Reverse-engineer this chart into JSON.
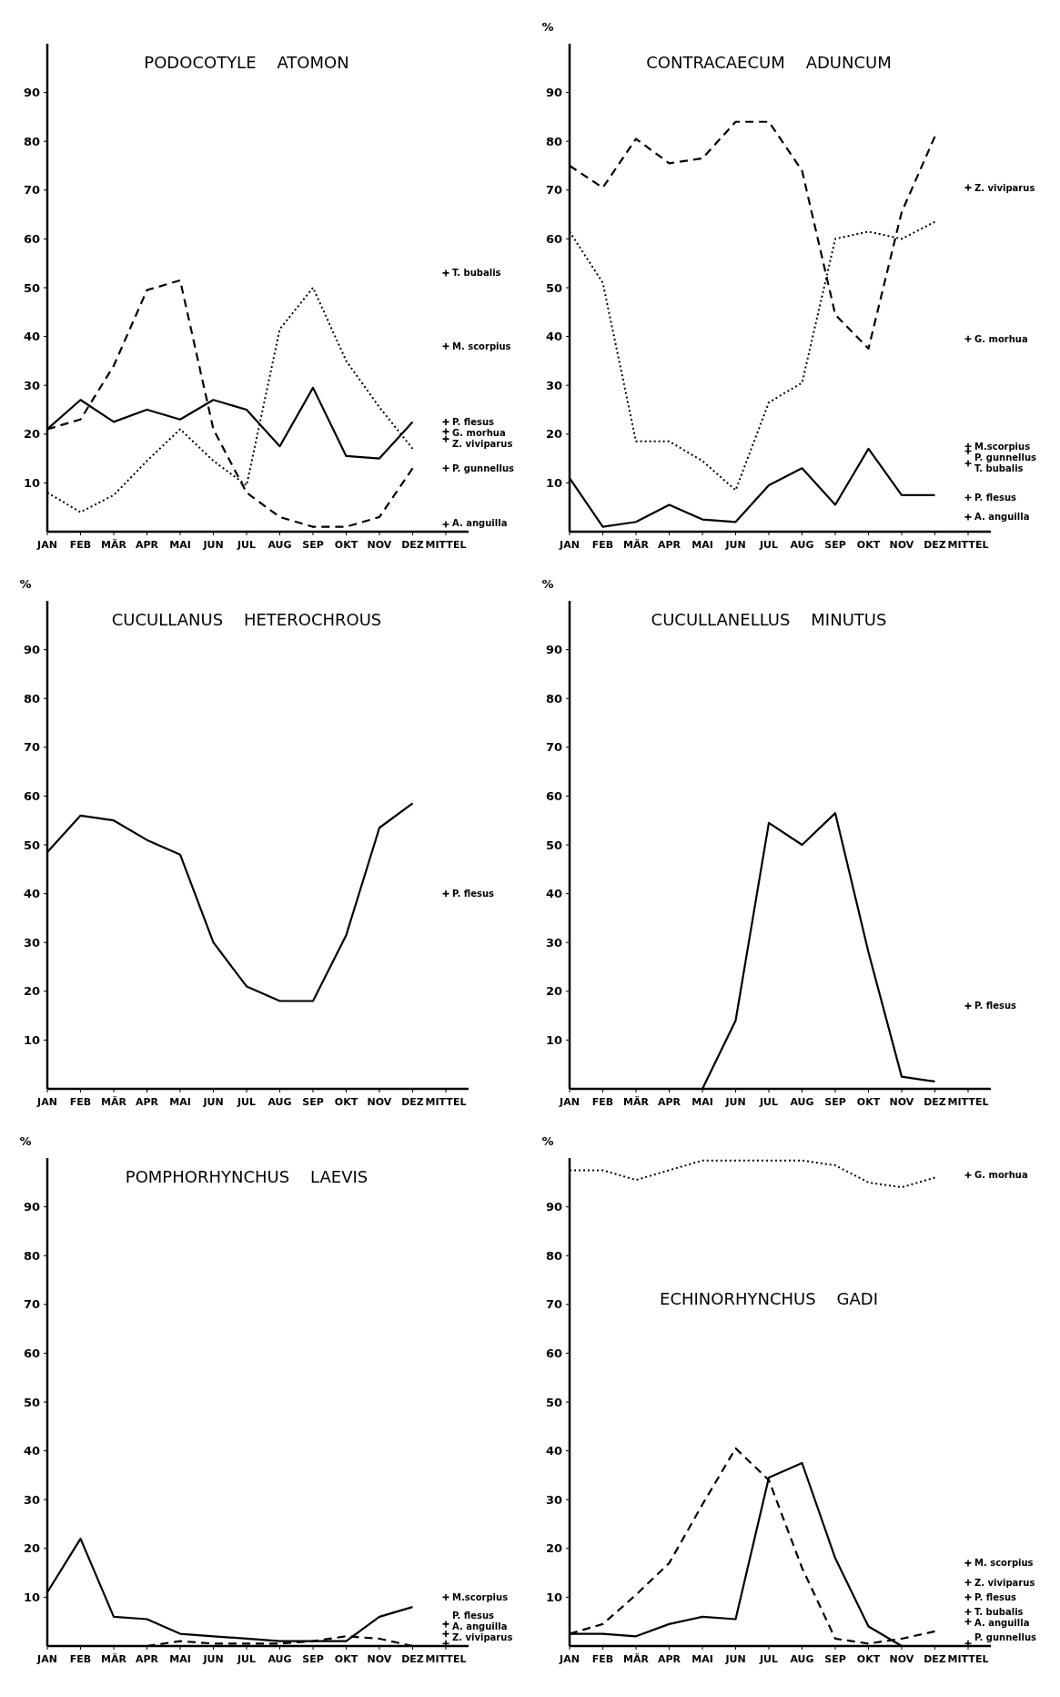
{
  "chart_data": [
    {
      "type": "line",
      "title": "PODOCOTYLE    ATOMON",
      "categories": [
        "JAN",
        "FEB",
        "MÄR",
        "APR",
        "MAI",
        "JUN",
        "JUL",
        "AUG",
        "SEP",
        "OKT",
        "NOV",
        "DEZ",
        "MITTEL"
      ],
      "ylim": [
        0,
        100
      ],
      "yticks": [
        10,
        20,
        30,
        40,
        50,
        60,
        70,
        80,
        90
      ],
      "marker": "none",
      "series": [
        {
          "color": "#000000",
          "line_style": "solid",
          "values": [
            21,
            27,
            22.5,
            25,
            23,
            27,
            25,
            17.5,
            29.5,
            15.5,
            15,
            22.5,
            null
          ]
        },
        {
          "color": "#000000",
          "line_style": "dashed",
          "values": [
            21,
            23,
            34,
            49.5,
            51.5,
            21,
            8,
            3,
            1,
            1,
            3,
            13,
            null
          ]
        },
        {
          "color": "#000000",
          "line_style": "dotted",
          "values": [
            8,
            4,
            7.5,
            14.5,
            21,
            14.5,
            9.5,
            41.5,
            50,
            35,
            25.5,
            17,
            null
          ]
        },
        {
          "type": "scatter",
          "marker": "cross",
          "name": "T. bubalis",
          "color": "#000000",
          "x": [
            "MITTEL"
          ],
          "values": [
            53
          ]
        },
        {
          "type": "scatter",
          "marker": "cross",
          "name": "M. scorpius",
          "color": "#000000",
          "x": [
            "MITTEL"
          ],
          "values": [
            38
          ]
        },
        {
          "type": "scatter",
          "marker": "cross",
          "name": "P. flesus",
          "color": "#000000",
          "x": [
            "MITTEL"
          ],
          "values": [
            22.5
          ]
        },
        {
          "type": "scatter",
          "marker": "cross",
          "name": "G. morhua",
          "color": "#000000",
          "x": [
            "MITTEL"
          ],
          "values": [
            20.5
          ]
        },
        {
          "type": "scatter",
          "marker": "cross",
          "name": "Z. viviparus",
          "color": "#000000",
          "x": [
            "MITTEL"
          ],
          "values": [
            19
          ]
        },
        {
          "type": "scatter",
          "marker": "cross",
          "name": "P. gunnellus",
          "color": "#000000",
          "x": [
            "MITTEL"
          ],
          "values": [
            13
          ]
        },
        {
          "type": "scatter",
          "marker": "cross",
          "name": "A. anguilla",
          "color": "#000000",
          "x": [
            "MITTEL"
          ],
          "values": [
            1.5
          ]
        }
      ]
    },
    {
      "type": "line",
      "title": "CONTRACAECUM    ADUNCUM",
      "ylabel": "%",
      "categories": [
        "JAN",
        "FEB",
        "MÄR",
        "APR",
        "MAI",
        "JUN",
        "JUL",
        "AUG",
        "SEP",
        "OKT",
        "NOV",
        "DEZ",
        "MITTEL"
      ],
      "ylim": [
        0,
        100
      ],
      "yticks": [
        10,
        20,
        30,
        40,
        50,
        60,
        70,
        80,
        90
      ],
      "marker": "none",
      "series": [
        {
          "color": "#000000",
          "line_style": "dashed",
          "values": [
            75,
            70.5,
            80.5,
            75.5,
            76.5,
            84,
            84,
            74,
            44.5,
            37.5,
            65.5,
            81,
            null
          ]
        },
        {
          "color": "#000000",
          "line_style": "dotted",
          "values": [
            61.5,
            51,
            18.5,
            18.5,
            14.5,
            8.5,
            26.5,
            30.5,
            60,
            61.5,
            60,
            63.5,
            null
          ]
        },
        {
          "color": "#000000",
          "line_style": "solid",
          "values": [
            11,
            1,
            2,
            5.5,
            2.5,
            2,
            9.5,
            13,
            5.5,
            17,
            7.5,
            7.5,
            null
          ]
        },
        {
          "type": "scatter",
          "marker": "cross",
          "name": "Z. viviparus",
          "color": "#000000",
          "x": [
            "MITTEL"
          ],
          "values": [
            70.5
          ]
        },
        {
          "type": "scatter",
          "marker": "cross",
          "name": "G. morhua",
          "color": "#000000",
          "x": [
            "MITTEL"
          ],
          "values": [
            39.5
          ]
        },
        {
          "type": "scatter",
          "marker": "cross",
          "name": "M.scorpius",
          "color": "#000000",
          "x": [
            "MITTEL"
          ],
          "values": [
            17.5
          ]
        },
        {
          "type": "scatter",
          "marker": "cross",
          "name": "P. gunnellus",
          "color": "#000000",
          "x": [
            "MITTEL"
          ],
          "values": [
            16.5
          ]
        },
        {
          "type": "scatter",
          "marker": "cross",
          "name": "T. bubalis",
          "color": "#000000",
          "x": [
            "MITTEL"
          ],
          "values": [
            14
          ]
        },
        {
          "type": "scatter",
          "marker": "cross",
          "name": "P. flesus",
          "color": "#000000",
          "x": [
            "MITTEL"
          ],
          "values": [
            7
          ]
        },
        {
          "type": "scatter",
          "marker": "cross",
          "name": "A. anguilla",
          "color": "#000000",
          "x": [
            "MITTEL"
          ],
          "values": [
            3
          ]
        }
      ]
    },
    {
      "type": "line",
      "title": "CUCULLANUS    HETEROCHROUS",
      "ylabel": "%",
      "categories": [
        "JAN",
        "FEB",
        "MÄR",
        "APR",
        "MAI",
        "JUN",
        "JUL",
        "AUG",
        "SEP",
        "OKT",
        "NOV",
        "DEZ",
        "MITTEL"
      ],
      "ylim": [
        0,
        100
      ],
      "yticks": [
        10,
        20,
        30,
        40,
        50,
        60,
        70,
        80,
        90
      ],
      "marker": "none",
      "series": [
        {
          "color": "#000000",
          "line_style": "solid",
          "values": [
            48.5,
            56,
            55,
            51,
            48,
            30,
            21,
            18,
            18,
            31.5,
            53.5,
            58.5,
            null
          ]
        },
        {
          "type": "scatter",
          "marker": "cross",
          "name": "P. flesus",
          "color": "#000000",
          "x": [
            "MITTEL"
          ],
          "values": [
            40
          ]
        }
      ]
    },
    {
      "type": "line",
      "title": "CUCULLANELLUS    MINUTUS",
      "ylabel": "%",
      "categories": [
        "JAN",
        "FEB",
        "MÄR",
        "APR",
        "MAI",
        "JUN",
        "JUL",
        "AUG",
        "SEP",
        "OKT",
        "NOV",
        "DEZ",
        "MITTEL"
      ],
      "ylim": [
        0,
        100
      ],
      "yticks": [
        10,
        20,
        30,
        40,
        50,
        60,
        70,
        80,
        90
      ],
      "marker": "none",
      "series": [
        {
          "color": "#000000",
          "line_style": "solid",
          "values": [
            null,
            null,
            null,
            null,
            0,
            14,
            54.5,
            50,
            56.5,
            28,
            2.5,
            1.5,
            null
          ]
        },
        {
          "type": "scatter",
          "marker": "cross",
          "name": "P. flesus",
          "color": "#000000",
          "x": [
            "MITTEL"
          ],
          "values": [
            17
          ]
        }
      ]
    },
    {
      "type": "line",
      "title": "POMPHORHYNCHUS    LAEVIS",
      "ylabel": "%",
      "categories": [
        "JAN",
        "FEB",
        "MÄR",
        "APR",
        "MAI",
        "JUN",
        "JUL",
        "AUG",
        "SEP",
        "OKT",
        "NOV",
        "DEZ",
        "MITTEL"
      ],
      "ylim": [
        0,
        100
      ],
      "yticks": [
        10,
        20,
        30,
        40,
        50,
        60,
        70,
        80,
        90
      ],
      "marker": "none",
      "series": [
        {
          "color": "#000000",
          "line_style": "solid",
          "values": [
            11,
            22,
            6,
            5.5,
            2.5,
            2,
            1.5,
            1,
            1,
            1,
            6,
            8,
            null
          ]
        },
        {
          "color": "#000000",
          "line_style": "dashed",
          "values": [
            null,
            null,
            null,
            0,
            1,
            0.5,
            0.5,
            0.5,
            1,
            2,
            1.5,
            0,
            null
          ]
        },
        {
          "type": "scatter",
          "marker": "cross",
          "name": "M.scorpius",
          "color": "#000000",
          "x": [
            "MITTEL"
          ],
          "values": [
            10
          ]
        },
        {
          "type": "scatter",
          "marker": "cross",
          "name": "P. flesus",
          "color": "#000000",
          "x": [
            "MITTEL"
          ],
          "values": [
            4.5
          ]
        },
        {
          "type": "scatter",
          "marker": "cross",
          "name": "A. anguilla",
          "color": "#000000",
          "x": [
            "MITTEL"
          ],
          "values": [
            2.5
          ]
        },
        {
          "type": "scatter",
          "marker": "cross",
          "name": "Z. viviparus",
          "color": "#000000",
          "x": [
            "MITTEL"
          ],
          "values": [
            0.5
          ]
        }
      ]
    },
    {
      "type": "line",
      "title": "ECHINORHYNCHUS    GADI",
      "ylabel": "%",
      "categories": [
        "JAN",
        "FEB",
        "MÄR",
        "APR",
        "MAI",
        "JUN",
        "JUL",
        "AUG",
        "SEP",
        "OKT",
        "NOV",
        "DEZ",
        "MITTEL"
      ],
      "ylim": [
        0,
        100
      ],
      "yticks": [
        10,
        20,
        30,
        40,
        50,
        60,
        70,
        80,
        90
      ],
      "marker": "none",
      "series": [
        {
          "color": "#000000",
          "line_style": "dotted",
          "values": [
            97.5,
            97.5,
            95.5,
            97.5,
            99.5,
            99.5,
            99.5,
            99.5,
            98.5,
            95,
            94,
            96,
            null
          ]
        },
        {
          "color": "#000000",
          "line_style": "dashed",
          "values": [
            2.5,
            4.5,
            10.5,
            17,
            29,
            40.5,
            34,
            16,
            1.5,
            0.5,
            1.5,
            3,
            null
          ]
        },
        {
          "color": "#000000",
          "line_style": "solid",
          "values": [
            2.5,
            2.5,
            2,
            4.5,
            6,
            5.5,
            34.5,
            37.5,
            18,
            4,
            0,
            0,
            null
          ]
        },
        {
          "type": "scatter",
          "marker": "cross",
          "name": "G. morhua",
          "color": "#000000",
          "x": [
            "MITTEL"
          ],
          "values": [
            96.5
          ]
        },
        {
          "type": "scatter",
          "marker": "cross",
          "name": "M. scorpius",
          "color": "#000000",
          "x": [
            "MITTEL"
          ],
          "values": [
            17
          ]
        },
        {
          "type": "scatter",
          "marker": "cross",
          "name": "Z. viviparus",
          "color": "#000000",
          "x": [
            "MITTEL"
          ],
          "values": [
            13
          ]
        },
        {
          "type": "scatter",
          "marker": "cross",
          "name": "P. flesus",
          "color": "#000000",
          "x": [
            "MITTEL"
          ],
          "values": [
            10
          ]
        },
        {
          "type": "scatter",
          "marker": "cross",
          "name": "T. bubalis",
          "color": "#000000",
          "x": [
            "MITTEL"
          ],
          "values": [
            7
          ]
        },
        {
          "type": "scatter",
          "marker": "cross",
          "name": "A. anguilla",
          "color": "#000000",
          "x": [
            "MITTEL"
          ],
          "values": [
            5
          ]
        },
        {
          "type": "scatter",
          "marker": "cross",
          "name": "P. gunnellus",
          "color": "#000000",
          "x": [
            "MITTEL"
          ],
          "values": [
            0.5
          ]
        }
      ]
    }
  ]
}
